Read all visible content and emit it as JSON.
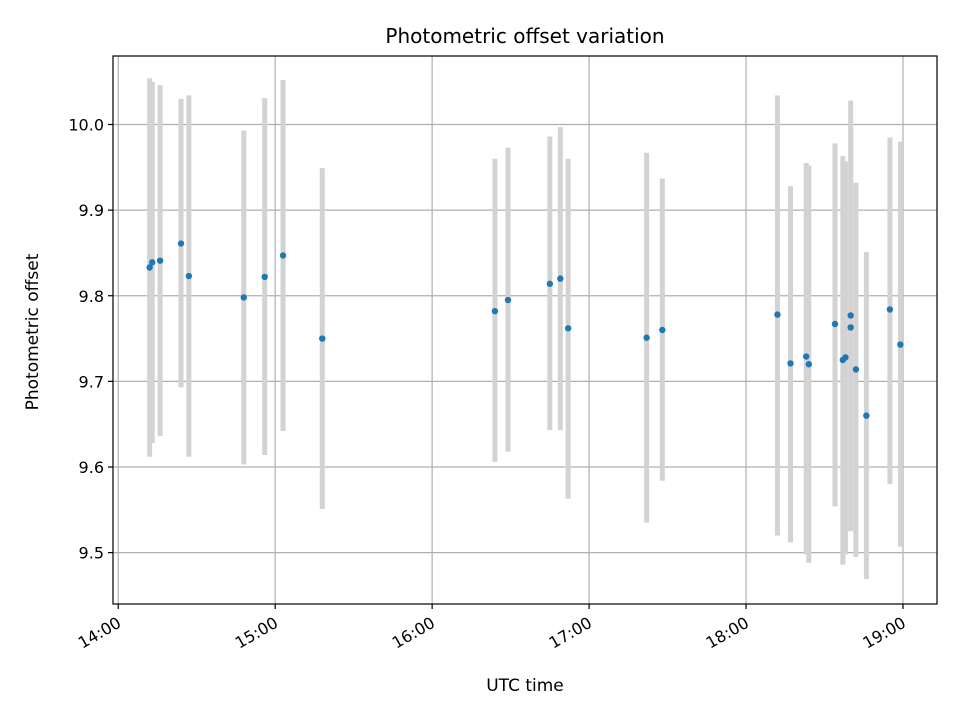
{
  "chart_data": {
    "type": "scatter",
    "title": "Photometric offset variation",
    "xlabel": "UTC time",
    "ylabel": "Photometric offset",
    "x_tick_labels": [
      "14:00",
      "15:00",
      "16:00",
      "17:00",
      "18:00",
      "19:00"
    ],
    "y_tick_labels": [
      "9.5",
      "9.6",
      "9.7",
      "9.8",
      "9.9",
      "10.0"
    ],
    "xlim": [
      "13:58",
      "19:13"
    ],
    "ylim": [
      9.44,
      10.08
    ],
    "grid": true,
    "marker_color": "#1f77b4",
    "errorbar_color": "#d3d3d3",
    "points": [
      {
        "x": "14:12",
        "y": 9.833,
        "ylow": 9.612,
        "yhigh": 10.054
      },
      {
        "x": "14:13",
        "y": 9.839,
        "ylow": 9.628,
        "yhigh": 10.05
      },
      {
        "x": "14:16",
        "y": 9.841,
        "ylow": 9.636,
        "yhigh": 10.046
      },
      {
        "x": "14:24",
        "y": 9.861,
        "ylow": 9.693,
        "yhigh": 10.03
      },
      {
        "x": "14:27",
        "y": 9.823,
        "ylow": 9.612,
        "yhigh": 10.034
      },
      {
        "x": "14:48",
        "y": 9.798,
        "ylow": 9.603,
        "yhigh": 9.993
      },
      {
        "x": "14:56",
        "y": 9.822,
        "ylow": 9.614,
        "yhigh": 10.031
      },
      {
        "x": "15:03",
        "y": 9.847,
        "ylow": 9.642,
        "yhigh": 10.052
      },
      {
        "x": "15:18",
        "y": 9.75,
        "ylow": 9.551,
        "yhigh": 9.949
      },
      {
        "x": "16:24",
        "y": 9.782,
        "ylow": 9.606,
        "yhigh": 9.96
      },
      {
        "x": "16:29",
        "y": 9.795,
        "ylow": 9.618,
        "yhigh": 9.973
      },
      {
        "x": "16:45",
        "y": 9.814,
        "ylow": 9.643,
        "yhigh": 9.986
      },
      {
        "x": "16:49",
        "y": 9.82,
        "ylow": 9.643,
        "yhigh": 9.997
      },
      {
        "x": "16:52",
        "y": 9.762,
        "ylow": 9.563,
        "yhigh": 9.96
      },
      {
        "x": "17:22",
        "y": 9.751,
        "ylow": 9.535,
        "yhigh": 9.967
      },
      {
        "x": "17:28",
        "y": 9.76,
        "ylow": 9.584,
        "yhigh": 9.937
      },
      {
        "x": "18:12",
        "y": 9.778,
        "ylow": 9.52,
        "yhigh": 10.034
      },
      {
        "x": "18:17",
        "y": 9.721,
        "ylow": 9.512,
        "yhigh": 9.928
      },
      {
        "x": "18:23",
        "y": 9.729,
        "ylow": 9.498,
        "yhigh": 9.955
      },
      {
        "x": "18:24",
        "y": 9.72,
        "ylow": 9.488,
        "yhigh": 9.952
      },
      {
        "x": "18:34",
        "y": 9.767,
        "ylow": 9.554,
        "yhigh": 9.978
      },
      {
        "x": "18:37",
        "y": 9.725,
        "ylow": 9.486,
        "yhigh": 9.963
      },
      {
        "x": "18:38",
        "y": 9.728,
        "ylow": 9.498,
        "yhigh": 9.957
      },
      {
        "x": "18:40",
        "y": 9.777,
        "ylow": 9.525,
        "yhigh": 10.028
      },
      {
        "x": "18:40",
        "y": 9.763,
        "ylow": 9.527,
        "yhigh": 9.998
      },
      {
        "x": "18:42",
        "y": 9.714,
        "ylow": 9.495,
        "yhigh": 9.932
      },
      {
        "x": "18:46",
        "y": 9.66,
        "ylow": 9.469,
        "yhigh": 9.851
      },
      {
        "x": "18:55",
        "y": 9.784,
        "ylow": 9.58,
        "yhigh": 9.985
      },
      {
        "x": "18:59",
        "y": 9.743,
        "ylow": 9.507,
        "yhigh": 9.98
      }
    ]
  }
}
